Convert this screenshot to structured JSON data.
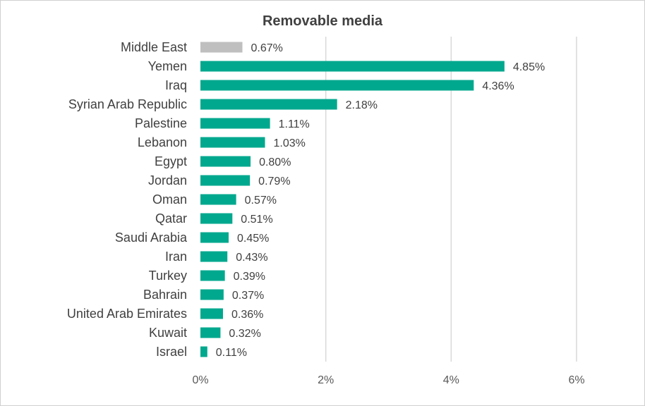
{
  "chart_data": {
    "type": "bar",
    "orientation": "horizontal",
    "title": "Removable media",
    "xlabel": "",
    "ylabel": "",
    "xlim": [
      0,
      6
    ],
    "x_ticks": [
      0,
      2,
      4,
      6
    ],
    "x_tick_labels": [
      "0%",
      "2%",
      "4%",
      "6%"
    ],
    "grid": "vertical",
    "legend": "none",
    "categories": [
      "Middle East",
      "Yemen",
      "Iraq",
      "Syrian Arab Republic",
      "Palestine",
      "Lebanon",
      "Egypt",
      "Jordan",
      "Oman",
      "Qatar",
      "Saudi Arabia",
      "Iran",
      "Turkey",
      "Bahrain",
      "United Arab Emirates",
      "Kuwait",
      "Israel"
    ],
    "values": [
      0.67,
      4.85,
      4.36,
      2.18,
      1.11,
      1.03,
      0.8,
      0.79,
      0.57,
      0.51,
      0.45,
      0.43,
      0.39,
      0.37,
      0.36,
      0.32,
      0.11
    ],
    "value_labels": [
      "0.67%",
      "4.85%",
      "4.36%",
      "2.18%",
      "1.11%",
      "1.03%",
      "0.80%",
      "0.79%",
      "0.57%",
      "0.51%",
      "0.45%",
      "0.43%",
      "0.39%",
      "0.37%",
      "0.36%",
      "0.32%",
      "0.11%"
    ],
    "colors": {
      "highlight_category": "Middle East",
      "highlight": "#bfbfbf",
      "default": "#00a88e",
      "gridline": "#d9d9d9"
    }
  }
}
